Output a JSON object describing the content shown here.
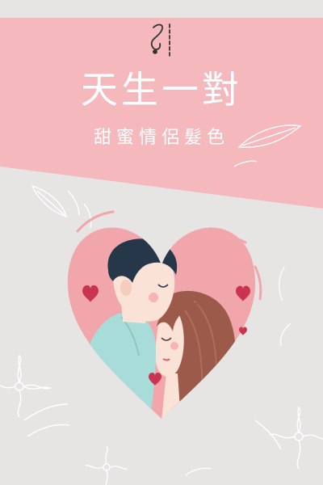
{
  "poster": {
    "title": "天生一對",
    "subtitle": "甜蜜情侶髮色"
  },
  "colors": {
    "background": "#e7e4e4",
    "band": "#f4b8bd",
    "heart": "#f1a6ab",
    "accent_heart": "#c9354e",
    "hair_man": "#26374a",
    "hair_woman": "#9b5a4a",
    "shirt": "#a8dcd8",
    "skin": "#fbe2d6"
  },
  "icons": [
    "logo-icon",
    "heart-icon",
    "leaf-icon",
    "flower-icon"
  ]
}
